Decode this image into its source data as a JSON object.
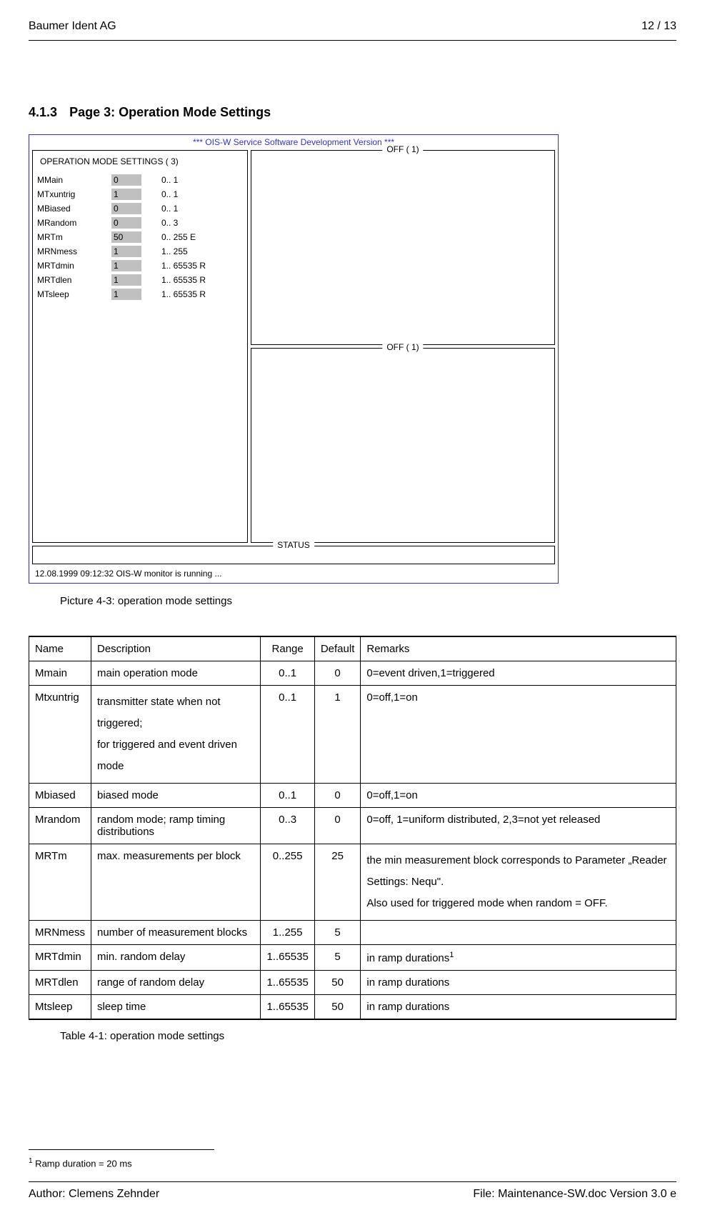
{
  "header": {
    "company": "Baumer Ident AG",
    "page_count": "12 / 13"
  },
  "section": {
    "number": "4.1.3",
    "title": "Page 3: Operation Mode Settings"
  },
  "screenshot": {
    "title": "*** OIS-W Service Software Development Version ***",
    "left_panel_title": "OPERATION MODE SETTINGS ( 3)",
    "right_top_label": "OFF ( 1)",
    "right_bottom_label": "OFF ( 1)",
    "status_label": "STATUS",
    "footer_text": "12.08.1999  09:12:32    OIS-W monitor is running ...",
    "params": [
      {
        "name": "MMain",
        "value": "0",
        "range": "0..   1"
      },
      {
        "name": "MTxuntrig",
        "value": "1",
        "range": "0..   1"
      },
      {
        "name": "MBiased",
        "value": "0",
        "range": "0..   1"
      },
      {
        "name": "MRandom",
        "value": "0",
        "range": "0..   3"
      },
      {
        "name": "MRTm",
        "value": "50",
        "range": "0..  255 E"
      },
      {
        "name": "MRNmess",
        "value": "1",
        "range": "1..  255"
      },
      {
        "name": "MRTdmin",
        "value": "1",
        "range": "1.. 65535 R"
      },
      {
        "name": "MRTdlen",
        "value": "1",
        "range": "1.. 65535 R"
      },
      {
        "name": "MTsleep",
        "value": "1",
        "range": "1.. 65535 R"
      }
    ]
  },
  "picture_caption": "Picture 4-3: operation mode settings",
  "table": {
    "headers": {
      "name": "Name",
      "description": "Description",
      "range": "Range",
      "default": "Default",
      "remarks": "Remarks"
    },
    "rows": [
      {
        "name": "Mmain",
        "description": "main operation mode",
        "range": "0..1",
        "default": "0",
        "remarks": "0=event driven,1=triggered"
      },
      {
        "name": "Mtxuntrig",
        "description": "transmitter state when not triggered;\nfor triggered and event driven mode",
        "range": "0..1",
        "default": "1",
        "remarks": "0=off,1=on"
      },
      {
        "name": "Mbiased",
        "description": "biased mode",
        "range": "0..1",
        "default": "0",
        "remarks": "0=off,1=on"
      },
      {
        "name": "Mrandom",
        "description": "random mode; ramp timing distributions",
        "range": "0..3",
        "default": "0",
        "remarks": "0=off, 1=uniform distributed, 2,3=not yet released"
      },
      {
        "name": "MRTm",
        "description": "max. measurements per block",
        "range": "0..255",
        "default": "25",
        "remarks": "the min measurement block corresponds to Parameter „Reader Settings: Nequ\".\nAlso used for triggered mode when random = OFF."
      },
      {
        "name": "MRNmess",
        "description": "number of measurement blocks",
        "range": "1..255",
        "default": "5",
        "remarks": ""
      },
      {
        "name": "MRTdmin",
        "description": "min. random delay",
        "range": "1..65535",
        "default": "5",
        "remarks": "in ramp durations",
        "sup": "1"
      },
      {
        "name": "MRTdlen",
        "description": "range of random delay",
        "range": "1..65535",
        "default": "50",
        "remarks": "in ramp durations"
      },
      {
        "name": "Mtsleep",
        "description": "sleep time",
        "range": "1..65535",
        "default": "50",
        "remarks": "in ramp durations"
      }
    ]
  },
  "table_caption": "Table 4-1: operation mode settings",
  "footnote": {
    "marker": "1",
    "text": " Ramp duration =  20 ms"
  },
  "footer": {
    "author": "Author: Clemens Zehnder",
    "file": "File: Maintenance-SW.doc Version 3.0 e"
  }
}
